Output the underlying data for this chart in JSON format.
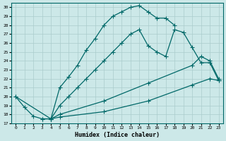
{
  "xlabel": "Humidex (Indice chaleur)",
  "bg_color": "#cce8e8",
  "line_color": "#006868",
  "grid_color": "#aacccc",
  "xlim": [
    -0.5,
    23.5
  ],
  "ylim": [
    17,
    30.5
  ],
  "yticks": [
    17,
    18,
    19,
    20,
    21,
    22,
    23,
    24,
    25,
    26,
    27,
    28,
    29,
    30
  ],
  "xticks": [
    0,
    1,
    2,
    3,
    4,
    5,
    6,
    7,
    8,
    9,
    10,
    11,
    12,
    13,
    14,
    15,
    16,
    17,
    18,
    19,
    20,
    21,
    22,
    23
  ],
  "curve1_x": [
    0,
    1,
    2,
    3,
    4,
    5,
    6,
    7,
    8,
    9,
    10,
    11,
    12,
    13,
    14,
    15,
    16,
    17,
    18
  ],
  "curve1_y": [
    20,
    18.8,
    17.8,
    17.5,
    17.5,
    21.0,
    22.2,
    23.5,
    25.2,
    26.5,
    28.0,
    29.0,
    29.5,
    30.0,
    30.2,
    29.5,
    28.8,
    28.8,
    28.0
  ],
  "curve2_x": [
    0,
    4,
    5,
    6,
    7,
    8,
    9,
    10,
    11,
    12,
    13,
    14,
    15,
    16,
    17,
    18,
    19,
    20,
    21,
    22,
    23
  ],
  "curve2_y": [
    20,
    17.5,
    19.0,
    20.0,
    21.0,
    22.0,
    23.0,
    24.0,
    25.0,
    26.0,
    27.0,
    27.5,
    25.7,
    25.0,
    24.5,
    27.5,
    27.2,
    25.5,
    23.8,
    23.8,
    21.8
  ],
  "curve3_x": [
    3,
    4,
    5,
    10,
    15,
    20,
    22,
    23
  ],
  "curve3_y": [
    17.5,
    17.5,
    17.7,
    18.3,
    19.5,
    21.3,
    22.0,
    21.8
  ],
  "curve4_x": [
    4,
    5,
    10,
    15,
    20,
    21,
    22,
    23
  ],
  "curve4_y": [
    17.5,
    18.0,
    19.5,
    21.5,
    23.5,
    24.5,
    24.0,
    22.0
  ]
}
